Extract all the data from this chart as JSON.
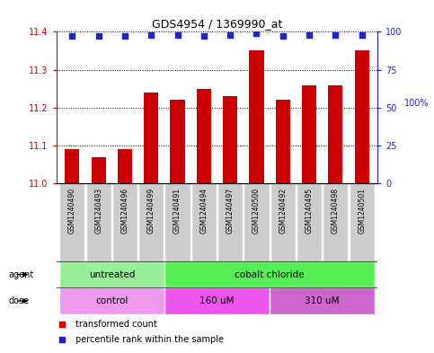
{
  "title": "GDS4954 / 1369990_at",
  "samples": [
    "GSM1240490",
    "GSM1240493",
    "GSM1240496",
    "GSM1240499",
    "GSM1240491",
    "GSM1240494",
    "GSM1240497",
    "GSM1240500",
    "GSM1240492",
    "GSM1240495",
    "GSM1240498",
    "GSM1240501"
  ],
  "bar_values": [
    11.09,
    11.07,
    11.09,
    11.24,
    11.22,
    11.25,
    11.23,
    11.35,
    11.22,
    11.26,
    11.26,
    11.35
  ],
  "percentile_values": [
    97,
    97,
    97,
    98,
    98,
    97,
    98,
    99,
    97,
    98,
    98,
    98
  ],
  "ylim_left": [
    11.0,
    11.4
  ],
  "ylim_right": [
    0,
    100
  ],
  "yticks_left": [
    11.0,
    11.1,
    11.2,
    11.3,
    11.4
  ],
  "yticks_right": [
    0,
    25,
    50,
    75,
    100
  ],
  "bar_color": "#cc0000",
  "dot_color": "#2222cc",
  "agent_groups": [
    {
      "label": "untreated",
      "color": "#99ee99",
      "start": 0,
      "end": 4
    },
    {
      "label": "cobalt chloride",
      "color": "#55ee55",
      "start": 4,
      "end": 12
    }
  ],
  "dose_groups": [
    {
      "label": "control",
      "color": "#ee99ee",
      "start": 0,
      "end": 4
    },
    {
      "label": "160 uM",
      "color": "#ee55ee",
      "start": 4,
      "end": 8
    },
    {
      "label": "310 uM",
      "color": "#cc66cc",
      "start": 8,
      "end": 12
    }
  ],
  "legend_items": [
    {
      "label": "transformed count",
      "color": "#cc0000",
      "marker": "s"
    },
    {
      "label": "percentile rank within the sample",
      "color": "#2222cc",
      "marker": "s"
    }
  ],
  "bar_width": 0.55,
  "sample_bg_color": "#cccccc",
  "left_tick_color": "#cc0000",
  "right_tick_color": "#2222cc",
  "right_axis_top_label": "100%"
}
